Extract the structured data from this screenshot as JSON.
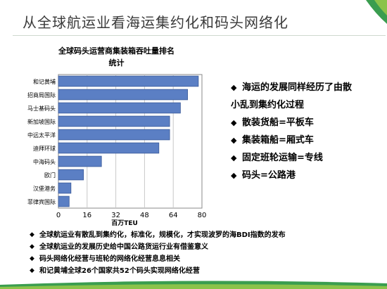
{
  "slide": {
    "title": "从全球航运业看海运集约化和码头网络化",
    "right_bullets": [
      {
        "line1": "海运的发展同样经历了由散",
        "line2": "小乱到集约化过程"
      },
      {
        "line1": "散装货船=平板车",
        "line2": ""
      },
      {
        "line1": "集装箱船=厢式车",
        "line2": ""
      },
      {
        "line1": "固定班轮运输=专线",
        "line2": ""
      },
      {
        "line1": "码头=公路港",
        "line2": ""
      }
    ],
    "bottom_bullets": [
      "全球航运业有散乱到集约化，标准化，规模化，才实现波罗的海BDI指数的发布",
      "全球航运业的发展历史给中国公路货运行业有借鉴意义",
      "码头网络化经营与班轮的网络化经营息息相关",
      "和记黄埔全球26个国家共52个码头实现网络化经营"
    ],
    "bullet_glyph": "◆"
  },
  "colors": {
    "bar_fill": "#5b7fc4",
    "bar_stroke": "#3b5a99",
    "green_accent": "#4caf50"
  },
  "chart_data": {
    "type": "bar",
    "orientation": "horizontal",
    "title_line1": "全球码头运营商集装箱吞吐量排名",
    "title_line2": "统计",
    "categories": [
      "和记黄埔",
      "招商局国际",
      "马士基码头",
      "新加坡国际",
      "中远太平洋",
      "迪拜环球",
      "中海码头",
      "欧门",
      "汉堡港务",
      "菲律宾国际"
    ],
    "values": [
      78,
      72,
      68,
      62,
      62,
      56,
      24,
      14,
      7,
      6
    ],
    "xlim": [
      0,
      80
    ],
    "xticks": [
      "0",
      "16",
      "32",
      "48",
      "64",
      "80"
    ],
    "xlabel": "百万TEU",
    "ylabel": ""
  }
}
